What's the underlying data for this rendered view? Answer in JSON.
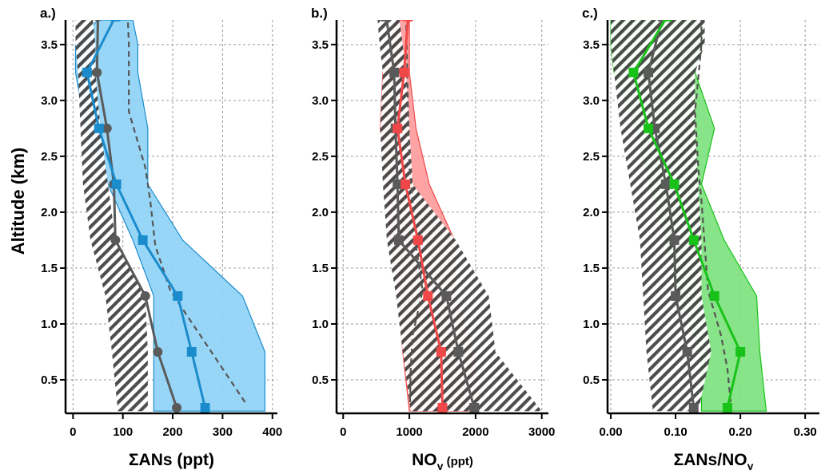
{
  "ylabel": "Altitude (km)",
  "colors": {
    "blue": "#1a8ccc",
    "blue_fill": "#8fd3f7",
    "red": "#f04848",
    "red_fill": "#ff9c9c",
    "green": "#19c219",
    "green_fill": "#7ee27e",
    "gray": "#5a5a5a",
    "hatch": "#444444"
  },
  "chart_data": [
    {
      "type": "line",
      "panel_label": "a.)",
      "xlabel": "ΣANs (ppt)",
      "xlabel_main": "ΣANs (ppt)",
      "xlabel_sub": "",
      "xlim": [
        -15,
        410
      ],
      "xticks": [
        0,
        100,
        200,
        300,
        400
      ],
      "xtick_labels": [
        "0",
        "100",
        "200",
        "300",
        "400"
      ],
      "ylim": [
        0.2,
        3.72
      ],
      "yticks": [
        0.5,
        1.0,
        1.5,
        2.0,
        2.5,
        3.0,
        3.5
      ],
      "ytick_labels": [
        "0.5",
        "1.0",
        "1.5",
        "2.0",
        "2.5",
        "3.0",
        "3.5"
      ],
      "grid": true,
      "altitudes": [
        0.25,
        0.75,
        1.25,
        1.75,
        2.25,
        2.75,
        3.25,
        3.75
      ],
      "series": [
        {
          "name": "",
          "role": "observed",
          "color": "blue",
          "marker": "square",
          "values": [
            265,
            238,
            210,
            140,
            87,
            52,
            28,
            85
          ]
        },
        {
          "name": "",
          "role": "model",
          "color": "gray",
          "marker": "circle",
          "values": [
            208,
            170,
            145,
            85,
            82,
            68,
            48,
            50
          ]
        }
      ],
      "dashed": {
        "x": [
          345,
          300,
          255,
          195,
          165,
          155,
          145,
          112,
          112,
          110
        ],
        "y": [
          0.3,
          0.6,
          0.9,
          1.3,
          1.7,
          2.1,
          2.4,
          2.9,
          3.5,
          3.72
        ]
      },
      "observed_band": {
        "low": [
          162,
          162,
          162,
          120,
          70,
          25,
          5,
          5,
          50
        ],
        "high": [
          385,
          385,
          340,
          220,
          150,
          150,
          130,
          130,
          120
        ],
        "y": [
          0.22,
          0.75,
          1.25,
          1.75,
          2.25,
          2.75,
          3.25,
          3.5,
          3.72
        ]
      },
      "model_band": {
        "low": [
          90,
          78,
          65,
          35,
          20,
          15,
          10,
          5,
          5
        ],
        "high": [
          150,
          150,
          145,
          85,
          70,
          55,
          45,
          45,
          40
        ],
        "y": [
          0.22,
          0.75,
          1.25,
          1.75,
          2.25,
          2.75,
          3.25,
          3.5,
          3.72
        ]
      }
    },
    {
      "type": "line",
      "panel_label": "b.)",
      "xlabel": "NOy (ppt)",
      "xlabel_main": "NO",
      "xlabel_sub": "y",
      "xlabel_small": " (ppt)",
      "xlim": [
        -100,
        3100
      ],
      "xticks": [
        0,
        1000,
        2000,
        3000
      ],
      "xtick_labels": [
        "0",
        "1000",
        "2000",
        "3000"
      ],
      "ylim": [
        0.2,
        3.72
      ],
      "yticks": [
        0.5,
        1.0,
        1.5,
        2.0,
        2.5,
        3.0,
        3.5
      ],
      "ytick_labels": [
        "0.5",
        "1.0",
        "1.5",
        "2.0",
        "2.5",
        "3.0",
        "3.5"
      ],
      "grid": true,
      "altitudes": [
        0.25,
        0.75,
        1.25,
        1.75,
        2.25,
        2.75,
        3.25,
        3.75
      ],
      "series": [
        {
          "name": "",
          "role": "observed",
          "color": "red",
          "marker": "square",
          "values": [
            1500,
            1480,
            1280,
            1130,
            940,
            820,
            920,
            980
          ]
        },
        {
          "name": "",
          "role": "model",
          "color": "gray",
          "marker": "square",
          "values": [
            1980,
            1740,
            1560,
            840,
            820,
            790,
            770,
            650
          ]
        }
      ],
      "dashed": {
        "x": [
          1010,
          1020,
          1050,
          1200,
          1100,
          1050,
          1000,
          980,
          960,
          950
        ],
        "y": [
          0.3,
          0.6,
          0.9,
          1.3,
          1.7,
          2.1,
          2.4,
          2.9,
          3.5,
          3.72
        ]
      },
      "observed_band": {
        "low": [
          1000,
          900,
          840,
          720,
          660,
          560,
          600,
          720,
          800
        ],
        "high": [
          2060,
          1980,
          1700,
          1680,
          1300,
          1100,
          1000,
          1000,
          1000
        ],
        "y": [
          0.22,
          0.75,
          1.25,
          1.75,
          2.25,
          2.75,
          3.25,
          3.5,
          3.72
        ]
      },
      "model_band": {
        "low": [
          1020,
          900,
          800,
          660,
          600,
          560,
          600,
          550,
          520
        ],
        "high": [
          3000,
          2300,
          2200,
          1700,
          1050,
          1000,
          950,
          900,
          850
        ],
        "y": [
          0.22,
          0.75,
          1.25,
          1.75,
          2.25,
          2.75,
          3.25,
          3.5,
          3.72
        ]
      }
    },
    {
      "type": "line",
      "panel_label": "c.)",
      "xlabel": "ΣANs/NOy",
      "xlabel_main": "ΣANs/NO",
      "xlabel_sub": "y",
      "xlim": [
        -0.005,
        0.322
      ],
      "xticks": [
        0.0,
        0.1,
        0.2,
        0.3
      ],
      "xtick_labels": [
        "0.00",
        "0.10",
        "0.20",
        "0.30"
      ],
      "ylim": [
        0.2,
        3.72
      ],
      "yticks": [
        0.5,
        1.0,
        1.5,
        2.0,
        2.5,
        3.0,
        3.5
      ],
      "ytick_labels": [
        "0.5",
        "1.0",
        "1.5",
        "2.0",
        "2.5",
        "3.0",
        "3.5"
      ],
      "grid": true,
      "altitudes": [
        0.25,
        0.75,
        1.25,
        1.75,
        2.25,
        2.75,
        3.25,
        3.75
      ],
      "series": [
        {
          "name": "",
          "role": "observed",
          "color": "green",
          "marker": "square",
          "values": [
            0.18,
            0.2,
            0.16,
            0.128,
            0.098,
            0.058,
            0.035,
            0.087
          ]
        },
        {
          "name": "",
          "role": "model",
          "color": "gray",
          "marker": "square",
          "values": [
            0.128,
            0.118,
            0.1,
            0.098,
            0.085,
            0.068,
            0.058,
            0.08
          ]
        }
      ],
      "dashed": {
        "x": [
          0.185,
          0.18,
          0.17,
          0.15,
          0.145,
          0.14,
          0.135,
          0.13,
          0.14,
          0.14
        ],
        "y": [
          0.3,
          0.6,
          0.9,
          1.3,
          1.7,
          2.1,
          2.4,
          2.9,
          3.5,
          3.72
        ]
      },
      "observed_band": {
        "low": [
          0.14,
          0.14,
          0.105,
          0.085,
          0.06,
          0.04,
          0.005,
          0.0,
          0.0
        ],
        "high": [
          0.24,
          0.23,
          0.225,
          0.175,
          0.14,
          0.16,
          0.13,
          0.14,
          0.14
        ],
        "y": [
          0.22,
          0.75,
          1.25,
          1.75,
          2.25,
          2.75,
          3.25,
          3.5,
          3.72
        ]
      },
      "model_band": {
        "low": [
          0.065,
          0.055,
          0.05,
          0.045,
          0.03,
          0.015,
          0.005,
          0.0,
          0.0
        ],
        "high": [
          0.135,
          0.155,
          0.14,
          0.14,
          0.135,
          0.13,
          0.13,
          0.145,
          0.145
        ],
        "y": [
          0.22,
          0.75,
          1.25,
          1.75,
          2.25,
          2.75,
          3.25,
          3.5,
          3.72
        ]
      }
    }
  ]
}
